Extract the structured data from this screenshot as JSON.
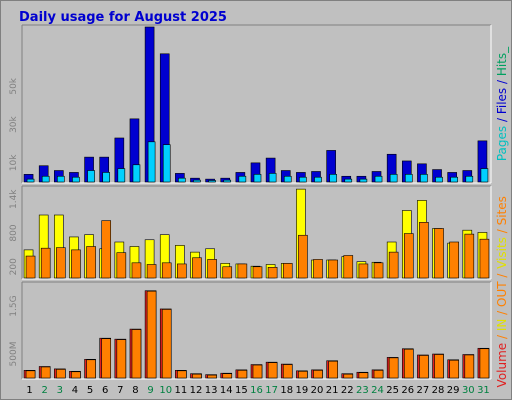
{
  "chart_data": {
    "type": "bar",
    "title": "Daily usage for August 2025",
    "categories": [
      "1",
      "2",
      "3",
      "4",
      "5",
      "6",
      "7",
      "8",
      "9",
      "10",
      "11",
      "12",
      "13",
      "14",
      "15",
      "16",
      "17",
      "18",
      "19",
      "20",
      "21",
      "22",
      "23",
      "24",
      "25",
      "26",
      "27",
      "28",
      "29",
      "30",
      "31"
    ],
    "weekend_days": [
      "2",
      "3",
      "9",
      "10",
      "16",
      "17",
      "23",
      "24",
      "30",
      "31"
    ],
    "colors": {
      "pages": "#0000d0",
      "files": "#00d0ff",
      "hits": "#00a060",
      "visits": "#ffff00",
      "sites": "#ff8000",
      "volume": "#e02020",
      "in": "#e0e000",
      "out": "#ff8000",
      "background": "#c0c0c0",
      "plot_background": "#c0c0c0",
      "title": "#0000d0",
      "weekday_label": "#000000",
      "weekend_label": "#008040"
    },
    "panels": [
      {
        "name": "pages-files-hits",
        "ylim": [
          0,
          81000
        ],
        "yticks": [
          "10k",
          "30k",
          "50k"
        ],
        "ytick_values": [
          10000,
          30000,
          50000
        ],
        "side_label": [
          {
            "text": "Pages",
            "color": "#00c0c0"
          },
          {
            "text": " / ",
            "color": "#0000d0"
          },
          {
            "text": "Files",
            "color": "#0000d0"
          },
          {
            "text": " / ",
            "color": "#0000d0"
          },
          {
            "text": "Hits",
            "color": "#00a060"
          },
          {
            "text": "_",
            "color": "#00a060"
          }
        ],
        "series": [
          {
            "key": "hits",
            "values": [
              0,
              0,
              0,
              0,
              0,
              0,
              0,
              0,
              0,
              0,
              0,
              0,
              0,
              0,
              0,
              0,
              0,
              0,
              0,
              0,
              0,
              0,
              0,
              0,
              0,
              0,
              0,
              0,
              0,
              0,
              0
            ]
          },
          {
            "key": "pages",
            "values": [
              4000,
              8500,
              6000,
              5000,
              13000,
              13000,
              23000,
              33000,
              81000,
              67000,
              4500,
              2000,
              1500,
              2000,
              5000,
              10000,
              12500,
              6000,
              5000,
              5500,
              16500,
              3000,
              3000,
              5500,
              14500,
              11000,
              9500,
              6500,
              5000,
              6000,
              21500
            ]
          },
          {
            "key": "files",
            "values": [
              1500,
              3000,
              3000,
              2500,
              6000,
              5000,
              7000,
              9000,
              21000,
              19500,
              2000,
              1000,
              800,
              1000,
              3000,
              4000,
              4500,
              3000,
              2500,
              2500,
              4000,
              1500,
              1500,
              3000,
              4000,
              4000,
              4000,
              2500,
              2500,
              3000,
              7000
            ]
          }
        ]
      },
      {
        "name": "visits-sites",
        "ylim": [
          0,
          1600
        ],
        "yticks": [
          "200",
          "800",
          "1.4k"
        ],
        "ytick_values": [
          200,
          800,
          1400
        ],
        "side_label": [
          {
            "text": "Visits",
            "color": "#e0e000"
          },
          {
            "text": " / ",
            "color": "#ff8000"
          },
          {
            "text": "Sites",
            "color": "#ff8000"
          }
        ],
        "series": [
          {
            "key": "visits",
            "values": [
              500,
              1120,
              1120,
              730,
              770,
              520,
              640,
              560,
              680,
              770,
              580,
              460,
              520,
              260,
              250,
              210,
              240,
              260,
              1580,
              320,
              320,
              380,
              290,
              280,
              640,
              1200,
              1380,
              880,
              620,
              850,
              810
            ]
          },
          {
            "key": "sites",
            "values": [
              390,
              530,
              540,
              500,
              560,
              1020,
              450,
              270,
              240,
              270,
              250,
              360,
              330,
              200,
              250,
              200,
              190,
              260,
              760,
              330,
              320,
              400,
              250,
              270,
              460,
              790,
              990,
              880,
              640,
              780,
              690
            ]
          }
        ]
      },
      {
        "name": "volume-in-out",
        "ylim": [
          0,
          1960
        ],
        "yticks": [
          "500M",
          "1.5G"
        ],
        "ytick_values": [
          500,
          1500
        ],
        "side_label": [
          {
            "text": "Volume",
            "color": "#e02020"
          },
          {
            "text": " / ",
            "color": "#ff8000"
          },
          {
            "text": "IN",
            "color": "#e0e000"
          },
          {
            "text": " / ",
            "color": "#ff8000"
          },
          {
            "text": "OUT",
            "color": "#ff8000"
          },
          {
            "text": " / ",
            "color": "#ff8000"
          }
        ],
        "series": [
          {
            "key": "volume",
            "values": [
              160,
              240,
              190,
              140,
              390,
              830,
              810,
              1020,
              1820,
              1440,
              160,
              90,
              70,
              100,
              170,
              280,
              330,
              290,
              150,
              170,
              360,
              90,
              120,
              170,
              430,
              610,
              480,
              500,
              380,
              490,
              620
            ]
          },
          {
            "key": "out",
            "values": [
              150,
              230,
              180,
              130,
              380,
              820,
              800,
              1010,
              1810,
              1430,
              150,
              80,
              60,
              90,
              160,
              270,
              320,
              280,
              140,
              160,
              350,
              80,
              110,
              160,
              420,
              600,
              470,
              490,
              370,
              480,
              610
            ]
          }
        ]
      }
    ]
  }
}
